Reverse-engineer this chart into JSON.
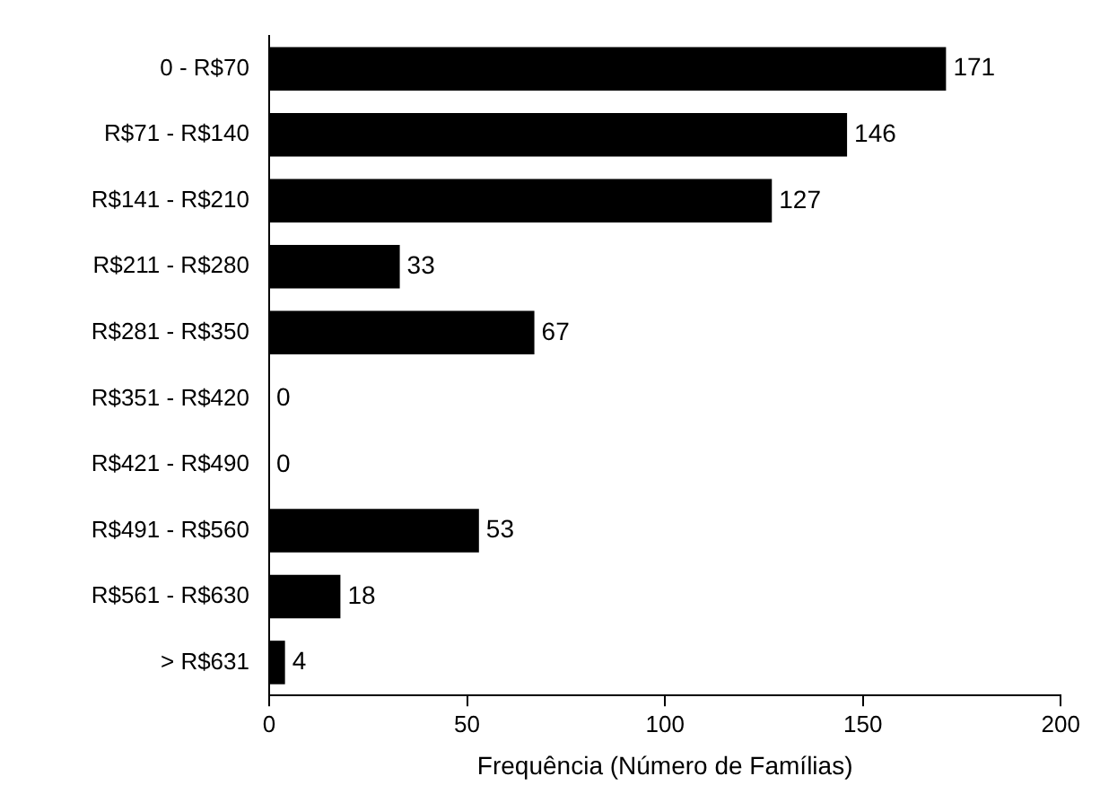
{
  "chart_data": {
    "type": "bar",
    "orientation": "horizontal",
    "xlabel": "Frequência (Número de Famílias)",
    "categories": [
      "0 - R$70",
      "R$71 - R$140",
      "R$141 - R$210",
      "R$211 - R$280",
      "R$281 - R$350",
      "R$351 - R$420",
      "R$421 - R$490",
      "R$491 - R$560",
      "R$561 - R$630",
      "> R$631"
    ],
    "values": [
      171,
      146,
      127,
      33,
      67,
      0,
      0,
      53,
      18,
      4
    ],
    "color": "#000000",
    "xlim": [
      0,
      200
    ],
    "xticks": [
      0,
      50,
      100,
      150,
      200
    ],
    "data_labels": true
  }
}
